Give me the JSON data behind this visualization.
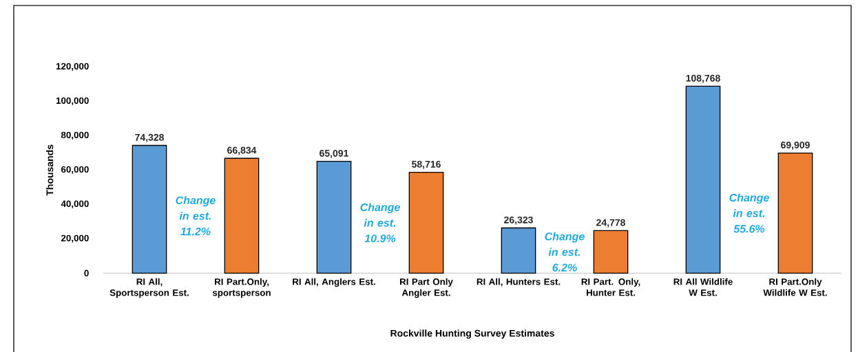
{
  "chart_data": {
    "type": "bar",
    "xlabel": "Rockville Hunting Survey Estimates",
    "ylabel": "Thousands",
    "categories": [
      "RI All, Sportsperson Est.",
      "RI Part.Only, sportsperson",
      "RI All, Anglers Est.",
      "RI Part Only Angler Est.",
      "RI All, Hunters Est.",
      "RI Part. Only, Hunter Est.",
      "RI All Wildlife W Est.",
      "RI Part.Only Wildlife W Est."
    ],
    "values": [
      74328,
      66834,
      65091,
      58716,
      26323,
      24778,
      108768,
      69909
    ],
    "colors": [
      "#5b9bd5",
      "#ed7d31",
      "#5b9bd5",
      "#ed7d31",
      "#5b9bd5",
      "#ed7d31",
      "#5b9bd5",
      "#ed7d31"
    ],
    "value_labels": [
      "74,328",
      "66,834",
      "65,091",
      "58,716",
      "26,323",
      "24,778",
      "108,768",
      "69,909"
    ],
    "ylim": [
      0,
      120000
    ],
    "yticks": [
      {
        "value": 0,
        "label": "0"
      },
      {
        "value": 20000,
        "label": "20,000"
      },
      {
        "value": 40000,
        "label": "40,000"
      },
      {
        "value": 60000,
        "label": "60,000"
      },
      {
        "value": 80000,
        "label": "80,000"
      },
      {
        "value": 100000,
        "label": "100,000"
      },
      {
        "value": 120000,
        "label": "120,000"
      }
    ],
    "annotations": [
      "Change in est. 11.2%",
      "Change in est. 10.9%",
      "Change in est. 6.2%",
      "Change in est. 55.6%"
    ]
  }
}
